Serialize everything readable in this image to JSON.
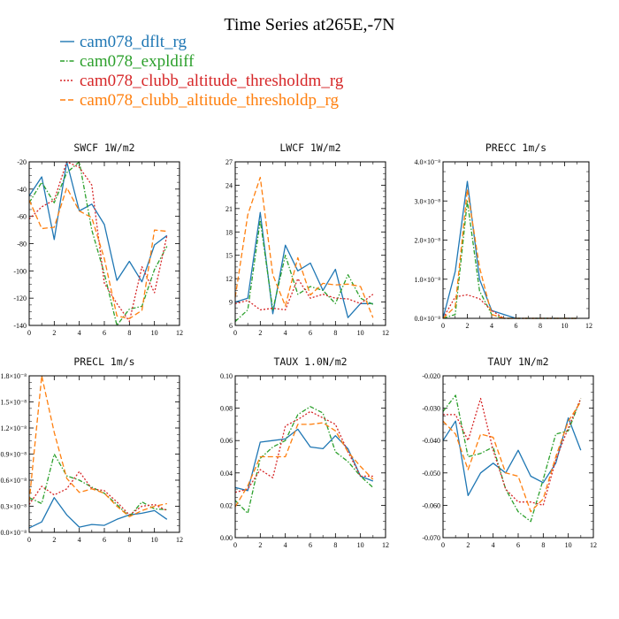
{
  "figure_title": "Time Series at265E,-7N",
  "legend": [
    {
      "label": "cam078_dflt_rg",
      "color": "#1f77b4"
    },
    {
      "label": "cam078_expldiff",
      "color": "#2ca02c"
    },
    {
      "label": "cam078_clubb_altitude_thresholdm_rg",
      "color": "#d62728"
    },
    {
      "label": "cam078_clubb_altitude_thresholdp_rg",
      "color": "#ff7f0e"
    }
  ],
  "chart_data": [
    {
      "type": "line",
      "title": "SWCF   1W/m2",
      "x": [
        0,
        1,
        2,
        3,
        4,
        5,
        6,
        7,
        8,
        9,
        10,
        11
      ],
      "xlim": [
        0,
        12
      ],
      "xticks": [
        0,
        2,
        4,
        6,
        8,
        10,
        12
      ],
      "xtick_labels": [
        "0",
        "2",
        "4",
        "6",
        "8",
        "10",
        "12"
      ],
      "ylim": [
        -140,
        -20
      ],
      "yticks": [
        -140,
        -120,
        -100,
        -80,
        -60,
        -40,
        -20
      ],
      "ytick_labels": [
        "-140",
        "-120",
        "-100",
        "-80",
        "-60",
        "-40",
        "-20"
      ],
      "series": [
        {
          "name": "cam078_dflt_rg",
          "values": [
            -45,
            -31,
            -77,
            -20,
            -56,
            -51,
            -66,
            -107,
            -93,
            -108,
            -81,
            -74
          ]
        },
        {
          "name": "cam078_expldiff",
          "values": [
            -50,
            -35,
            -50,
            -28,
            -20,
            -70,
            -102,
            -140,
            -128,
            -126,
            -99,
            -82
          ]
        },
        {
          "name": "cam078_clubb_altitude_thresholdm_rg",
          "values": [
            -62,
            -53,
            -48,
            -20,
            -24,
            -37,
            -109,
            -124,
            -137,
            -97,
            -116,
            -74
          ]
        },
        {
          "name": "cam078_clubb_altitude_thresholdp_rg",
          "values": [
            -48,
            -69,
            -68,
            -39,
            -56,
            -61,
            -91,
            -133,
            -135,
            -129,
            -70,
            -71
          ]
        }
      ]
    },
    {
      "type": "line",
      "title": "LWCF   1W/m2",
      "x": [
        0,
        1,
        2,
        3,
        4,
        5,
        6,
        7,
        8,
        9,
        10,
        11
      ],
      "xlim": [
        0,
        12
      ],
      "xticks": [
        0,
        2,
        4,
        6,
        8,
        10,
        12
      ],
      "xtick_labels": [
        "0",
        "2",
        "4",
        "6",
        "8",
        "10",
        "12"
      ],
      "ylim": [
        6,
        27
      ],
      "yticks": [
        6,
        9,
        12,
        15,
        18,
        21,
        24,
        27
      ],
      "ytick_labels": [
        "6",
        "9",
        "12",
        "15",
        "18",
        "21",
        "24",
        "27"
      ],
      "series": [
        {
          "name": "cam078_dflt_rg",
          "values": [
            9,
            9.5,
            20.5,
            7.5,
            16.3,
            13,
            14,
            10.5,
            13.2,
            7,
            8.8,
            8.8
          ]
        },
        {
          "name": "cam078_expldiff",
          "values": [
            6.5,
            8,
            19.5,
            8,
            15,
            10,
            11,
            10.5,
            8.8,
            12.5,
            9.5,
            8.7
          ]
        },
        {
          "name": "cam078_clubb_altitude_thresholdm_rg",
          "values": [
            8.8,
            9.2,
            8,
            8.2,
            8,
            12,
            9.5,
            10,
            9.5,
            9.4,
            8.8,
            10
          ]
        },
        {
          "name": "cam078_clubb_altitude_thresholdp_rg",
          "values": [
            9.6,
            20.2,
            25,
            12.5,
            8.5,
            14.7,
            9.9,
            11.4,
            11.2,
            11.3,
            11,
            7
          ]
        }
      ]
    },
    {
      "type": "line",
      "title": "PRECC   1m/s",
      "x": [
        0,
        1,
        2,
        3,
        4,
        5,
        6,
        7,
        8,
        9,
        10,
        11
      ],
      "xlim": [
        0,
        12
      ],
      "xticks": [
        0,
        2,
        4,
        6,
        8,
        10,
        12
      ],
      "xtick_labels": [
        "0",
        "2",
        "4",
        "6",
        "8",
        "10",
        "12"
      ],
      "ylim": [
        0,
        4e-08
      ],
      "yticks": [
        0,
        1e-08,
        2e-08,
        3e-08,
        4e-08
      ],
      "ytick_labels": [
        "0.0×10⁻⁸",
        "1.0×10⁻⁸",
        "2.0×10⁻⁸",
        "3.0×10⁻⁸",
        "4.0×10⁻⁸"
      ],
      "series": [
        {
          "name": "cam078_dflt_rg",
          "values": [
            0,
            1.2e-08,
            3.5e-08,
            1e-08,
            2e-09,
            1e-09,
            0,
            0,
            0,
            0,
            0,
            0
          ]
        },
        {
          "name": "cam078_expldiff",
          "values": [
            0,
            1e-09,
            3e-08,
            7e-09,
            1e-09,
            0,
            0,
            0,
            0,
            0,
            0,
            0
          ]
        },
        {
          "name": "cam078_clubb_altitude_thresholdm_rg",
          "values": [
            0,
            5.5e-09,
            6e-09,
            5e-09,
            2e-09,
            0,
            0,
            0,
            0,
            0,
            0,
            0
          ]
        },
        {
          "name": "cam078_clubb_altitude_thresholdp_rg",
          "values": [
            0,
            3e-09,
            3.3e-08,
            1.3e-08,
            1e-09,
            0,
            0,
            0,
            0,
            0,
            0,
            0
          ]
        }
      ]
    },
    {
      "type": "line",
      "title": "PRECL   1m/s",
      "x": [
        0,
        1,
        2,
        3,
        4,
        5,
        6,
        7,
        8,
        9,
        10,
        11
      ],
      "xlim": [
        0,
        12
      ],
      "xticks": [
        0,
        2,
        4,
        6,
        8,
        10,
        12
      ],
      "xtick_labels": [
        "0",
        "2",
        "4",
        "6",
        "8",
        "10",
        "12"
      ],
      "ylim": [
        0,
        1.8e-08
      ],
      "yticks": [
        0,
        3e-09,
        6e-09,
        9e-09,
        1.2e-08,
        1.5e-08,
        1.8e-08
      ],
      "ytick_labels": [
        "0.0×10⁻⁸",
        "0.3×10⁻⁸",
        "0.6×10⁻⁸",
        "0.9×10⁻⁸",
        "1.2×10⁻⁸",
        "1.5×10⁻⁸",
        "1.8×10⁻⁸"
      ],
      "series": [
        {
          "name": "cam078_dflt_rg",
          "values": [
            5e-10,
            1.2e-09,
            4e-09,
            2e-09,
            6e-10,
            9e-10,
            8e-10,
            1.5e-09,
            2e-09,
            2.2e-09,
            2.5e-09,
            1.5e-09
          ]
        },
        {
          "name": "cam078_expldiff",
          "values": [
            4e-09,
            3.3e-09,
            9e-09,
            6.5e-09,
            6e-09,
            5.2e-09,
            4.5e-09,
            3.2e-09,
            1.8e-09,
            3.5e-09,
            2.7e-09,
            2.6e-09
          ]
        },
        {
          "name": "cam078_clubb_altitude_thresholdm_rg",
          "values": [
            3.2e-09,
            5.3e-09,
            4.3e-09,
            5e-09,
            7e-09,
            5e-09,
            4.8e-09,
            3.5e-09,
            2e-09,
            3e-09,
            3.2e-09,
            2.5e-09
          ]
        },
        {
          "name": "cam078_clubb_altitude_thresholdp_rg",
          "values": [
            3.5e-09,
            1.8e-08,
            1.15e-08,
            6.2e-09,
            4.6e-09,
            5e-09,
            4.5e-09,
            3e-09,
            1.8e-09,
            2.5e-09,
            3e-09,
            3.3e-09
          ]
        }
      ]
    },
    {
      "type": "line",
      "title": "TAUX   1.0N/m2",
      "x": [
        0,
        1,
        2,
        3,
        4,
        5,
        6,
        7,
        8,
        9,
        10,
        11
      ],
      "xlim": [
        0,
        12
      ],
      "xticks": [
        0,
        2,
        4,
        6,
        8,
        10,
        12
      ],
      "xtick_labels": [
        "0",
        "2",
        "4",
        "6",
        "8",
        "10",
        "12"
      ],
      "ylim": [
        0,
        0.1
      ],
      "yticks": [
        0,
        0.02,
        0.04,
        0.06,
        0.08,
        0.1
      ],
      "ytick_labels": [
        "0.00",
        "0.02",
        "0.04",
        "0.06",
        "0.08",
        "0.10"
      ],
      "series": [
        {
          "name": "cam078_dflt_rg",
          "values": [
            0.031,
            0.029,
            0.059,
            0.06,
            0.061,
            0.067,
            0.056,
            0.055,
            0.063,
            0.055,
            0.038,
            0.035
          ]
        },
        {
          "name": "cam078_expldiff",
          "values": [
            0.023,
            0.015,
            0.049,
            0.056,
            0.06,
            0.076,
            0.081,
            0.077,
            0.053,
            0.047,
            0.038,
            0.031
          ]
        },
        {
          "name": "cam078_clubb_altitude_thresholdm_rg",
          "values": [
            0.028,
            0.03,
            0.042,
            0.037,
            0.069,
            0.073,
            0.078,
            0.074,
            0.07,
            0.053,
            0.038,
            0.038
          ]
        },
        {
          "name": "cam078_clubb_altitude_thresholdp_rg",
          "values": [
            0.019,
            0.032,
            0.05,
            0.05,
            0.05,
            0.07,
            0.07,
            0.071,
            0.066,
            0.053,
            0.044,
            0.036
          ]
        }
      ]
    },
    {
      "type": "line",
      "title": "TAUY   1N/m2",
      "x": [
        0,
        1,
        2,
        3,
        4,
        5,
        6,
        7,
        8,
        9,
        10,
        11
      ],
      "xlim": [
        0,
        12
      ],
      "xticks": [
        0,
        2,
        4,
        6,
        8,
        10,
        12
      ],
      "xtick_labels": [
        "0",
        "2",
        "4",
        "6",
        "8",
        "10",
        "12"
      ],
      "ylim": [
        -0.07,
        -0.02
      ],
      "yticks": [
        -0.07,
        -0.06,
        -0.05,
        -0.04,
        -0.03,
        -0.02
      ],
      "ytick_labels": [
        "-0.070",
        "-0.060",
        "-0.050",
        "-0.040",
        "-0.030",
        "-0.020"
      ],
      "series": [
        {
          "name": "cam078_dflt_rg",
          "values": [
            -0.04,
            -0.034,
            -0.057,
            -0.05,
            -0.047,
            -0.05,
            -0.043,
            -0.051,
            -0.053,
            -0.047,
            -0.033,
            -0.043
          ]
        },
        {
          "name": "cam078_expldiff",
          "values": [
            -0.031,
            -0.026,
            -0.045,
            -0.044,
            -0.042,
            -0.055,
            -0.062,
            -0.065,
            -0.052,
            -0.038,
            -0.037,
            -0.027
          ]
        },
        {
          "name": "cam078_clubb_altitude_thresholdm_rg",
          "values": [
            -0.032,
            -0.032,
            -0.04,
            -0.027,
            -0.043,
            -0.055,
            -0.059,
            -0.059,
            -0.06,
            -0.046,
            -0.036,
            -0.027
          ]
        },
        {
          "name": "cam078_clubb_altitude_thresholdp_rg",
          "values": [
            -0.034,
            -0.038,
            -0.049,
            -0.038,
            -0.039,
            -0.05,
            -0.051,
            -0.062,
            -0.058,
            -0.045,
            -0.034,
            -0.028
          ]
        }
      ]
    }
  ]
}
